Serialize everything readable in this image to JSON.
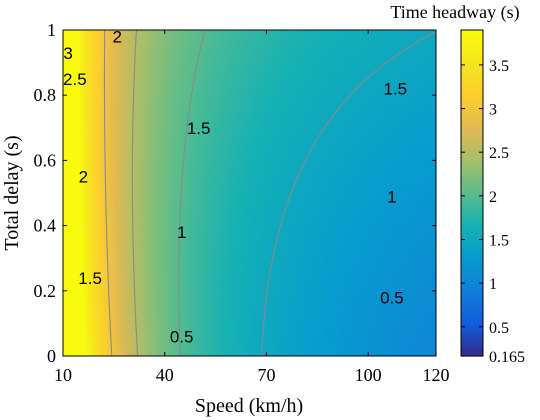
{
  "chart_data": {
    "type": "heatmap",
    "title": "",
    "xlabel": "Speed (km/h)",
    "ylabel": "Total delay (s)",
    "xlim": [
      10,
      120
    ],
    "ylim": [
      0,
      1
    ],
    "x_ticks": [
      10,
      40,
      70,
      100,
      120
    ],
    "y_ticks": [
      0,
      0.2,
      0.4,
      0.6,
      0.8,
      1
    ],
    "grid": false,
    "colormap": "parula",
    "colorbar": {
      "label": "Time headway (s)",
      "range": [
        0.165,
        3.9
      ],
      "ticks": [
        0.165,
        0.5,
        1,
        1.5,
        2,
        2.5,
        3,
        3.5
      ]
    },
    "contour_levels": [
      0.5,
      1,
      1.5,
      2,
      2.5,
      3
    ],
    "contour_labels": [
      {
        "text": "3",
        "x": 11.5,
        "y": 0.93
      },
      {
        "text": "2.5",
        "x": 13.5,
        "y": 0.85
      },
      {
        "text": "2",
        "x": 26,
        "y": 0.98
      },
      {
        "text": "2",
        "x": 16,
        "y": 0.55
      },
      {
        "text": "1.5",
        "x": 50,
        "y": 0.7
      },
      {
        "text": "1.5",
        "x": 108,
        "y": 0.82
      },
      {
        "text": "1",
        "x": 45,
        "y": 0.38
      },
      {
        "text": "1",
        "x": 107,
        "y": 0.49
      },
      {
        "text": "1.5",
        "x": 18,
        "y": 0.24
      },
      {
        "text": "0.5",
        "x": 45,
        "y": 0.06
      },
      {
        "text": "0.5",
        "x": 107,
        "y": 0.18
      }
    ]
  }
}
